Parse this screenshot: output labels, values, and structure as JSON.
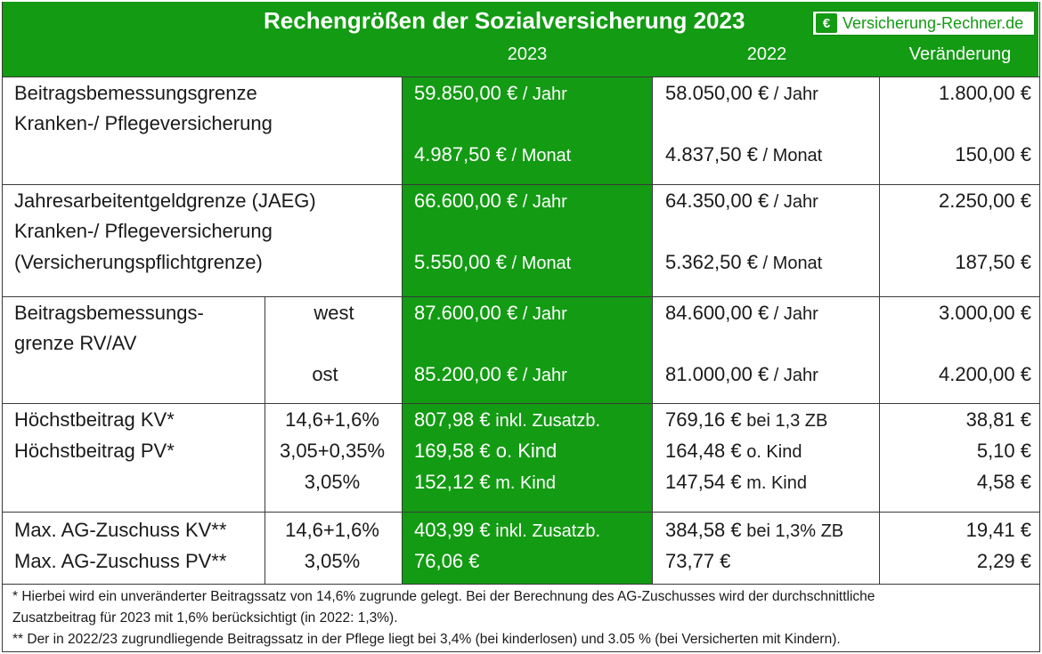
{
  "header": {
    "title": "Rechengrößen der Sozialversicherung 2023",
    "logo_text": "Versicherung-Rechner.de",
    "logo_symbol": "€",
    "col_2023": "2023",
    "col_2022": "2022",
    "col_change": "Veränderung"
  },
  "rows": {
    "bbg_kv": {
      "label1": "Beitragsbemessungsgrenze",
      "label2": "Kranken-/ Pflegeversicherung",
      "y23_jahr_amount": "59.850,00 €",
      "y23_jahr_unit": " / Jahr",
      "y23_monat_amount": "4.987,50 €",
      "y23_monat_unit": " / Monat",
      "y22_jahr_amount": "58.050,00 €",
      "y22_jahr_unit": " / Jahr",
      "y22_monat_amount": "4.837,50 €",
      "y22_monat_unit": " / Monat",
      "chg_jahr": "1.800,00 €",
      "chg_monat": "150,00 €"
    },
    "jaeg": {
      "label1": "Jahresarbeitentgeldgrenze (JAEG)",
      "label2": "Kranken-/ Pflegeversicherung",
      "label3": "(Versicherungspflichtgrenze)",
      "y23_jahr_amount": "66.600,00 €",
      "y23_jahr_unit": " / Jahr",
      "y23_monat_amount": "5.550,00 €",
      "y23_monat_unit": " / Monat",
      "y22_jahr_amount": "64.350,00 €",
      "y22_jahr_unit": " / Jahr",
      "y22_monat_amount": "5.362,50 €",
      "y22_monat_unit": " / Monat",
      "chg_jahr": "2.250,00 €",
      "chg_monat": "187,50 €"
    },
    "bbg_rv": {
      "label1": "Beitragsbemessungs-",
      "label2": "grenze RV/AV",
      "west": "west",
      "ost": "ost",
      "y23_west_amount": "87.600,00 €",
      "y23_west_unit": " / Jahr",
      "y23_ost_amount": "85.200,00 €",
      "y23_ost_unit": " / Jahr",
      "y22_west_amount": "84.600,00 €",
      "y22_west_unit": " / Jahr",
      "y22_ost_amount": "81.000,00 €",
      "y22_ost_unit": " / Jahr",
      "chg_west": "3.000,00 €",
      "chg_ost": "4.200,00 €"
    },
    "hoechst": {
      "label1": "Höchstbeitrag KV*",
      "label2": "Höchstbeitrag PV*",
      "rate1": "14,6+1,6%",
      "rate2": "3,05+0,35%",
      "rate3": "3,05%",
      "y23_1_amount": "807,98 €",
      "y23_1_note": " inkl. Zusatzb.",
      "y23_2_amount": "169,58 €",
      "y23_2_note": " o. Kind",
      "y23_3_amount": "152,12 €",
      "y23_3_note": " m. Kind",
      "y22_1_amount": "769,16 €",
      "y22_1_note": " bei 1,3 ZB",
      "y22_2_amount": "164,48 €",
      "y22_2_note": " o. Kind",
      "y22_3_amount": "147,54 €",
      "y22_3_note": " m. Kind",
      "chg1": "38,81 €",
      "chg2": "5,10 €",
      "chg3": "4,58 €"
    },
    "zuschuss": {
      "label1": "Max. AG-Zuschuss KV**",
      "label2": "Max. AG-Zuschuss PV**",
      "rate1": "14,6+1,6%",
      "rate2": "3,05%",
      "y23_1_amount": "403,99 €",
      "y23_1_note": " inkl. Zusatzb.",
      "y23_2_amount": "76,06 €",
      "y22_1_amount": "384,58 €",
      "y22_1_note": " bei 1,3% ZB",
      "y22_2_amount": "73,77 €",
      "chg1": "19,41 €",
      "chg2": "2,29 €"
    }
  },
  "footnotes": {
    "f1_line1": "*   Hierbei wird ein unveränderter Beitragssatz von 14,6% zugrunde gelegt. Bei der Berechnung des AG-Zuschusses wird der durchschnittliche",
    "f1_line2": "Zusatzbeitrag für 2023 mit 1,6% berücksichtigt (in 2022: 1,3%).",
    "f2": "** Der in 2022/23 zugrundliegende Beitragssatz in der Pflege liegt bei 3,4% (bei kinderlosen) und 3.05 % (bei Versicherten mit Kindern)."
  }
}
